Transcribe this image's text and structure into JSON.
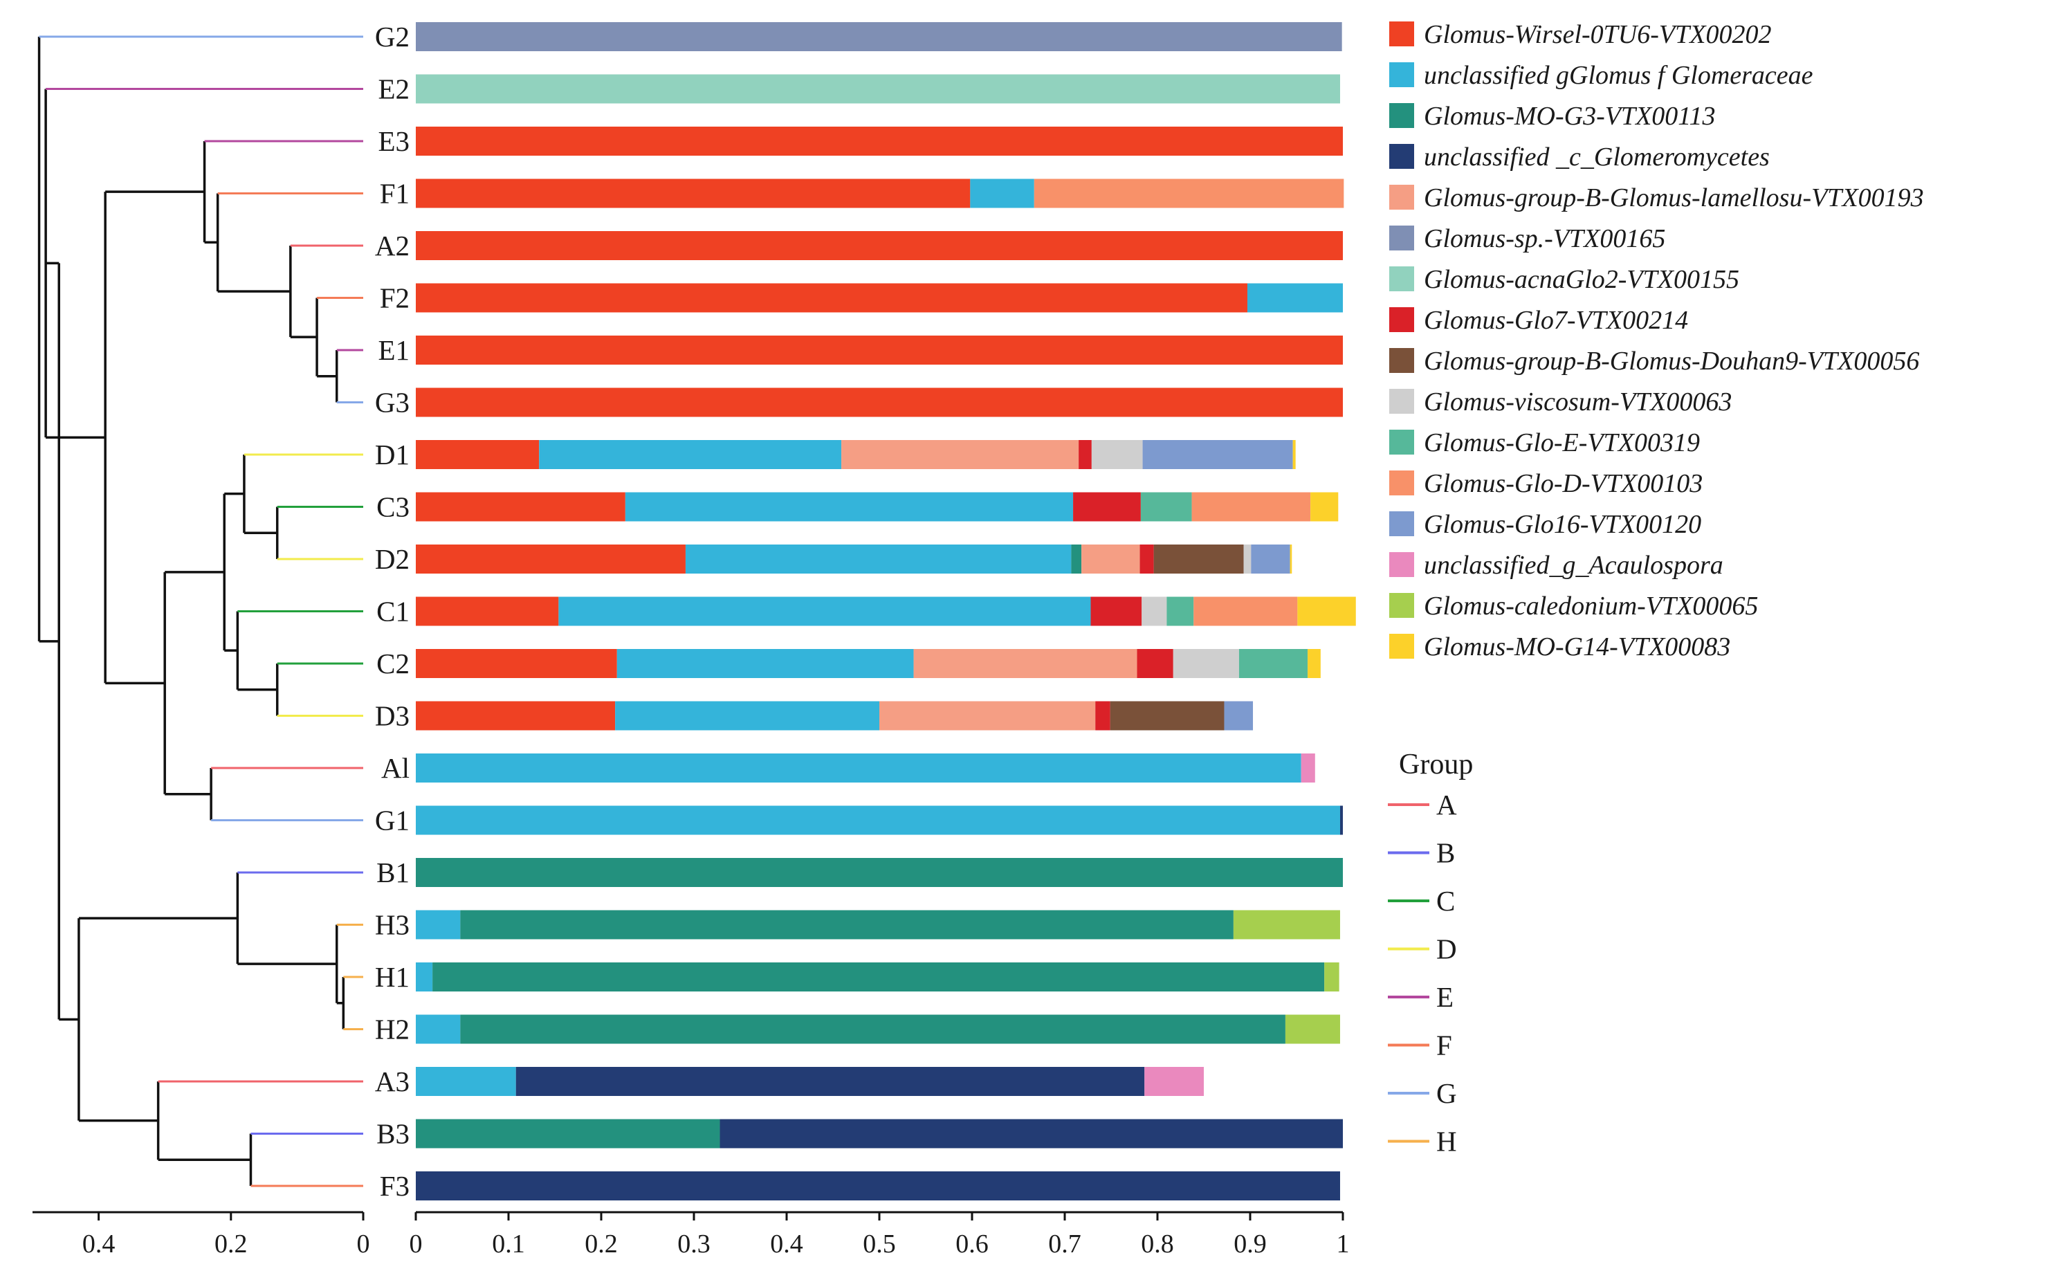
{
  "chart_data": {
    "type": "bar",
    "orientation": "horizontal",
    "stacked": true,
    "title": "",
    "xlabel": "",
    "ylabel": "",
    "xlim": [
      0,
      1
    ],
    "x_ticks": [
      "0",
      "0.1",
      "0.2",
      "0.3",
      "0.4",
      "0.5",
      "0.6",
      "0.7",
      "0.8",
      "0.9",
      "1"
    ],
    "dendrogram_ticks": [
      "0.4",
      "0.2",
      "0"
    ],
    "legend_position": "right",
    "categories": [
      "G2",
      "E2",
      "E3",
      "F1",
      "A2",
      "F2",
      "E1",
      "G3",
      "D1",
      "C3",
      "D2",
      "C1",
      "C2",
      "D3",
      "Al",
      "G1",
      "B1",
      "H3",
      "H1",
      "H2",
      "A3",
      "B3",
      "F3"
    ],
    "sample_groups": [
      "G",
      "E",
      "E",
      "F",
      "A",
      "F",
      "E",
      "G",
      "D",
      "C",
      "D",
      "C",
      "C",
      "D",
      "A",
      "G",
      "B",
      "H",
      "H",
      "H",
      "A",
      "B",
      "F"
    ],
    "series": [
      {
        "name": "Glomus-Wirsel-0TU6-VTX00202",
        "color": "#EF4123",
        "values": [
          0,
          0,
          1,
          0.598,
          1,
          0.897,
          1,
          1,
          0.133,
          0.226,
          0.291,
          0.154,
          0.217,
          0.215,
          0,
          0,
          0,
          0,
          0,
          0,
          0,
          0,
          0
        ]
      },
      {
        "name": "unclassified gGlomus f Glomeraceae",
        "color": "#34B4DA",
        "values": [
          0,
          0,
          0,
          0.069,
          0,
          0.103,
          0,
          0,
          0.326,
          0.483,
          0.416,
          0.574,
          0.32,
          0.285,
          0.955,
          0.997,
          0,
          0.048,
          0.018,
          0.048,
          0.108,
          0,
          0
        ]
      },
      {
        "name": "Glomus-MO-G3-VTX00113",
        "color": "#23917E",
        "values": [
          0,
          0,
          0,
          0,
          0,
          0,
          0,
          0,
          0,
          0,
          0.011,
          0,
          0,
          0,
          0,
          0,
          1,
          0.834,
          0.962,
          0.89,
          0,
          0.328,
          0
        ]
      },
      {
        "name": "unclassified _c_Glomeromycetes",
        "color": "#233C74",
        "values": [
          0,
          0,
          0,
          0,
          0,
          0,
          0,
          0,
          0,
          0,
          0,
          0,
          0,
          0,
          0,
          0.003,
          0,
          0,
          0,
          0,
          0.678,
          0.672,
          0.997
        ]
      },
      {
        "name": "Glomus-group-B-Glomus-lamellosu-VTX00193",
        "color": "#F59E84",
        "values": [
          0,
          0,
          0,
          0,
          0,
          0,
          0,
          0,
          0.256,
          0,
          0.063,
          0,
          0.241,
          0.233,
          0,
          0,
          0,
          0,
          0,
          0,
          0,
          0,
          0
        ]
      },
      {
        "name": "Glomus-sp.-VTX00165",
        "color": "#7F8FB4",
        "values": [
          0.999,
          0,
          0,
          0,
          0,
          0,
          0,
          0,
          0,
          0,
          0,
          0,
          0,
          0,
          0,
          0,
          0,
          0,
          0,
          0,
          0,
          0,
          0
        ]
      },
      {
        "name": "Glomus-acnaGlo2-VTX00155",
        "color": "#91D2BE",
        "values": [
          0,
          0.997,
          0,
          0,
          0,
          0,
          0,
          0,
          0,
          0,
          0,
          0,
          0,
          0,
          0,
          0,
          0,
          0,
          0,
          0,
          0,
          0,
          0
        ]
      },
      {
        "name": "Glomus-Glo7-VTX00214",
        "color": "#DA2128",
        "values": [
          0,
          0,
          0,
          0,
          0,
          0,
          0,
          0,
          0.014,
          0.073,
          0.015,
          0.055,
          0.039,
          0.016,
          0,
          0,
          0,
          0,
          0,
          0,
          0,
          0,
          0
        ]
      },
      {
        "name": "Glomus-group-B-Glomus-Douhan9-VTX00056",
        "color": "#7A5139",
        "values": [
          0,
          0,
          0,
          0,
          0,
          0,
          0,
          0,
          0,
          0,
          0.097,
          0,
          0,
          0.123,
          0,
          0,
          0,
          0,
          0,
          0,
          0,
          0,
          0
        ]
      },
      {
        "name": "Glomus-viscosum-VTX00063",
        "color": "#CFCFCF",
        "values": [
          0,
          0,
          0,
          0,
          0,
          0,
          0,
          0,
          0.055,
          0,
          0.008,
          0.027,
          0.071,
          0,
          0,
          0,
          0,
          0,
          0,
          0,
          0,
          0,
          0
        ]
      },
      {
        "name": "Glomus-Glo-E-VTX00319",
        "color": "#56B89A",
        "values": [
          0,
          0,
          0,
          0,
          0,
          0,
          0,
          0,
          0,
          0.055,
          0,
          0.029,
          0.074,
          0,
          0,
          0,
          0,
          0,
          0,
          0,
          0,
          0,
          0
        ]
      },
      {
        "name": "Glomus-Glo-D-VTX00103",
        "color": "#F89169",
        "values": [
          0,
          0,
          0,
          0.334,
          0,
          0,
          0,
          0,
          0,
          0.128,
          0,
          0.112,
          0,
          0,
          0,
          0,
          0,
          0,
          0,
          0,
          0,
          0,
          0
        ]
      },
      {
        "name": "Glomus-Glo16-VTX00120",
        "color": "#7D9ACF",
        "values": [
          0,
          0,
          0,
          0,
          0,
          0,
          0,
          0,
          0.162,
          0,
          0.042,
          0,
          0,
          0.031,
          0,
          0,
          0,
          0,
          0,
          0,
          0,
          0,
          0
        ]
      },
      {
        "name": "unclassified_g_Acaulospora",
        "color": "#EA89BE",
        "values": [
          0,
          0,
          0,
          0,
          0,
          0,
          0,
          0,
          0,
          0,
          0,
          0,
          0,
          0,
          0.015,
          0,
          0,
          0,
          0,
          0,
          0.064,
          0,
          0
        ]
      },
      {
        "name": "Glomus-caledonium-VTX00065",
        "color": "#A6CF4E",
        "values": [
          0,
          0,
          0,
          0,
          0,
          0,
          0,
          0,
          0,
          0,
          0,
          0,
          0,
          0,
          0,
          0,
          0,
          0.115,
          0.016,
          0.059,
          0,
          0,
          0
        ]
      },
      {
        "name": "Glomus-MO-G14-VTX00083",
        "color": "#FCD12A",
        "values": [
          0,
          0,
          0,
          0,
          0,
          0,
          0,
          0,
          0.003,
          0.03,
          0.002,
          0.063,
          0.014,
          0,
          0,
          0,
          0,
          0,
          0,
          0,
          0,
          0,
          0
        ]
      }
    ],
    "group_legend": {
      "title": "Group",
      "items": [
        {
          "name": "A",
          "color": "#F0636B"
        },
        {
          "name": "B",
          "color": "#6B6BEE"
        },
        {
          "name": "C",
          "color": "#22A03C"
        },
        {
          "name": "D",
          "color": "#F2EB4C"
        },
        {
          "name": "E",
          "color": "#B3489E"
        },
        {
          "name": "F",
          "color": "#F47B57"
        },
        {
          "name": "G",
          "color": "#86A8E8"
        },
        {
          "name": "H",
          "color": "#F6B04D"
        }
      ]
    },
    "dendrogram": {
      "xlim": [
        0.5,
        0
      ],
      "nodes": [
        {
          "id": "n1",
          "height": 0.04,
          "children": [
            "E1",
            "G3"
          ]
        },
        {
          "id": "n2",
          "height": 0.07,
          "children": [
            "F2",
            "n1"
          ]
        },
        {
          "id": "n3",
          "height": 0.11,
          "children": [
            "A2",
            "n2"
          ]
        },
        {
          "id": "n4",
          "height": 0.22,
          "children": [
            "F1",
            "n3"
          ]
        },
        {
          "id": "n5",
          "height": 0.24,
          "children": [
            "E3",
            "n4"
          ]
        },
        {
          "id": "n6",
          "height": 0.13,
          "children": [
            "C3",
            "D2"
          ]
        },
        {
          "id": "n7",
          "height": 0.18,
          "children": [
            "D1",
            "n6"
          ]
        },
        {
          "id": "n8",
          "height": 0.13,
          "children": [
            "C2",
            "D3"
          ]
        },
        {
          "id": "n9",
          "height": 0.19,
          "children": [
            "C1",
            "n8"
          ]
        },
        {
          "id": "n10",
          "height": 0.21,
          "children": [
            "n7",
            "n9"
          ]
        },
        {
          "id": "n11",
          "height": 0.23,
          "children": [
            "Al",
            "G1"
          ]
        },
        {
          "id": "n12",
          "height": 0.3,
          "children": [
            "n10",
            "n11"
          ]
        },
        {
          "id": "n13",
          "height": 0.39,
          "children": [
            "n5",
            "n12"
          ]
        },
        {
          "id": "n14",
          "height": 0.48,
          "children": [
            "E2",
            "n13"
          ]
        },
        {
          "id": "n15",
          "height": 0.03,
          "children": [
            "H1",
            "H2"
          ]
        },
        {
          "id": "n16",
          "height": 0.04,
          "children": [
            "H3",
            "n15"
          ]
        },
        {
          "id": "n17",
          "height": 0.19,
          "children": [
            "B1",
            "n16"
          ]
        },
        {
          "id": "n18",
          "height": 0.17,
          "children": [
            "B3",
            "F3"
          ]
        },
        {
          "id": "n19",
          "height": 0.31,
          "children": [
            "A3",
            "n18"
          ]
        },
        {
          "id": "n20",
          "height": 0.43,
          "children": [
            "n17",
            "n19"
          ]
        },
        {
          "id": "n21",
          "height": 0.46,
          "children": [
            "n14",
            "n20"
          ]
        },
        {
          "id": "root",
          "height": 0.49,
          "children": [
            "G2",
            "n21"
          ]
        }
      ]
    }
  }
}
